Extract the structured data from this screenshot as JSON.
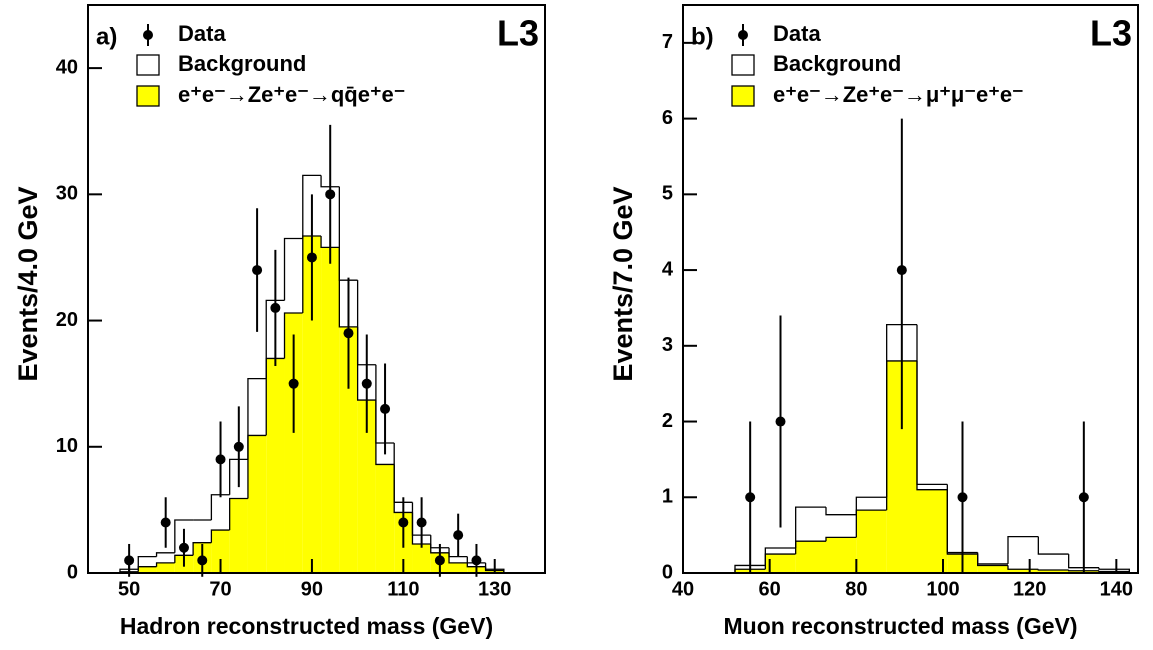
{
  "chart_data": [
    {
      "type": "histogram",
      "panel_label": "a)",
      "experiment": "L3",
      "x_label": "Hadron reconstructed mass (GeV)",
      "y_label": "Events/4.0 GeV",
      "xlim": [
        41,
        141
      ],
      "ylim": [
        0,
        45
      ],
      "xticks": [
        50,
        70,
        90,
        110,
        130
      ],
      "yticks": [
        0,
        10,
        20,
        30,
        40
      ],
      "bins": [
        48,
        52,
        56,
        60,
        64,
        68,
        72,
        76,
        80,
        84,
        88,
        92,
        96,
        100,
        104,
        108,
        112,
        116,
        120,
        124,
        128,
        132
      ],
      "series": [
        {
          "name": "e⁺e⁻→Ze⁺e⁻→qq̄e⁺e⁻",
          "color": "#ffff00",
          "values": [
            0.1,
            0.5,
            0.8,
            1.4,
            2.4,
            3.4,
            5.9,
            10.9,
            17,
            20.6,
            26.7,
            25.8,
            19.5,
            13.7,
            8.6,
            4.8,
            2.3,
            1.6,
            0.8,
            0.5,
            0.2
          ]
        },
        {
          "name": "Background",
          "color": "#ffffff",
          "values": [
            0.3,
            1.3,
            1.6,
            4.2,
            4.2,
            6.2,
            9,
            15.4,
            21.6,
            26.5,
            31.5,
            30.6,
            23.2,
            16.5,
            10.3,
            5.6,
            3,
            2,
            1.3,
            0.8,
            0.3
          ]
        }
      ],
      "points": {
        "name": "Data",
        "color": "#000000",
        "x": [
          50,
          58,
          62,
          66,
          70,
          74,
          78,
          82,
          86,
          90,
          94,
          98,
          102,
          106,
          110,
          114,
          118,
          122,
          126
        ],
        "values": [
          1,
          4,
          2,
          1,
          9,
          10,
          24,
          21,
          15,
          25,
          30,
          19,
          15,
          13,
          4,
          4,
          1,
          3,
          1
        ],
        "errors": [
          1.3,
          2,
          1.5,
          1.3,
          3,
          3.2,
          4.9,
          4.6,
          3.9,
          5,
          5.5,
          4.4,
          3.9,
          3.6,
          2,
          2,
          1.3,
          1.7,
          1.3
        ]
      }
    },
    {
      "type": "histogram",
      "panel_label": "b)",
      "experiment": "L3",
      "x_label": "Muon reconstructed mass (GeV)",
      "y_label": "Events/7.0 GeV",
      "xlim": [
        40,
        145
      ],
      "ylim": [
        0,
        7.5
      ],
      "xticks": [
        40,
        60,
        80,
        100,
        120,
        140
      ],
      "yticks": [
        0,
        1,
        2,
        3,
        4,
        5,
        6,
        7
      ],
      "bins": [
        52,
        59,
        66,
        73,
        80,
        87,
        94,
        101,
        108,
        115,
        122,
        129,
        136,
        143
      ],
      "series": [
        {
          "name": "e⁺e⁻→Ze⁺e⁻→μ⁺μ⁻e⁺e⁻",
          "color": "#ffff00",
          "values": [
            0.05,
            0.25,
            0.42,
            0.47,
            0.83,
            2.8,
            1.1,
            0.25,
            0.1,
            0.05,
            0.04,
            0.03,
            0.02
          ]
        },
        {
          "name": "Background",
          "color": "#ffffff",
          "values": [
            0.1,
            0.33,
            0.87,
            0.77,
            1.0,
            3.28,
            1.17,
            0.27,
            0.12,
            0.48,
            0.25,
            0.07,
            0.05
          ]
        }
      ],
      "points": {
        "name": "Data",
        "color": "#000000",
        "x": [
          55.5,
          62.5,
          90.5,
          104.5,
          132.5
        ],
        "values": [
          1,
          2,
          4,
          1,
          1
        ],
        "errors_low": [
          1,
          1.4,
          2.1,
          1,
          1
        ],
        "errors_high": [
          1,
          1.4,
          2,
          1,
          1
        ]
      }
    }
  ]
}
